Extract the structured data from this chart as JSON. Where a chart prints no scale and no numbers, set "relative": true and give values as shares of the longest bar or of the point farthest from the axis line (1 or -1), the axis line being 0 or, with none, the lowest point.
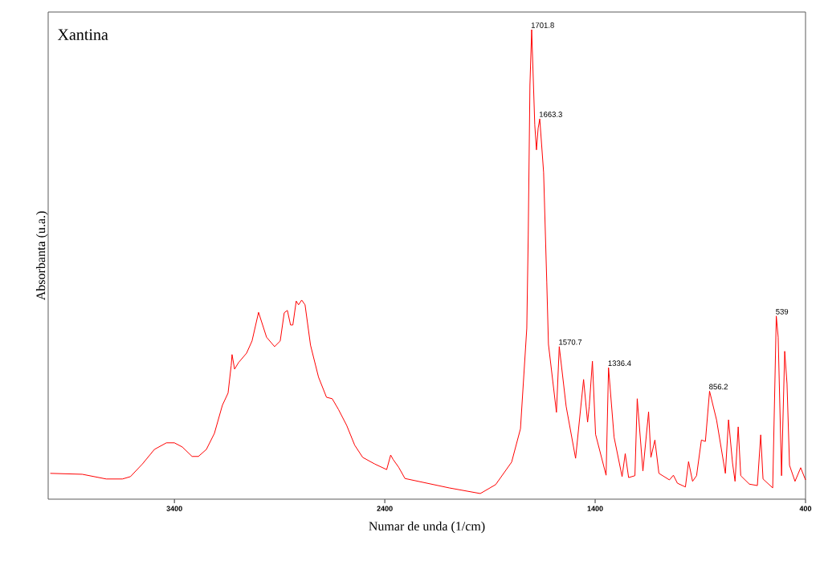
{
  "chart_data": {
    "type": "line",
    "title": "Xantina",
    "xlabel": "Numar de unda (1/cm)",
    "ylabel": "Absorbanta (u.a.)",
    "relative": true,
    "xlim": [
      4000,
      400
    ],
    "xticks": [
      3400,
      2400,
      1400,
      400
    ],
    "series": [
      {
        "color": "#ff0000",
        "x": [
          3990,
          3838,
          3724,
          3647,
          3609,
          3552,
          3495,
          3438,
          3400,
          3362,
          3316,
          3286,
          3248,
          3210,
          3172,
          3145,
          3130,
          3126,
          3114,
          3095,
          3057,
          3031,
          3000,
          2962,
          2924,
          2897,
          2878,
          2863,
          2848,
          2837,
          2821,
          2810,
          2795,
          2779,
          2753,
          2715,
          2677,
          2650,
          2620,
          2581,
          2543,
          2505,
          2448,
          2391,
          2372,
          2361,
          2334,
          2304,
          2094,
          1946,
          1873,
          1797,
          1755,
          1725,
          1718,
          1710,
          1701.8,
          1687,
          1679,
          1671,
          1663.3,
          1645,
          1630,
          1622,
          1584,
          1570.7,
          1538,
          1493,
          1455,
          1436,
          1428,
          1413,
          1398,
          1348,
          1336.4,
          1310,
          1272,
          1257,
          1241,
          1211,
          1200,
          1173,
          1146,
          1135,
          1116,
          1097,
          1047,
          1028,
          1009,
          971,
          956,
          937,
          918,
          895,
          876,
          856.2,
          823,
          781,
          766,
          747,
          735,
          720,
          708,
          667,
          629,
          613,
          602,
          556,
          539,
          530,
          514,
          499,
          488,
          476,
          450,
          423,
          400
        ],
        "values": [
          0.055,
          0.053,
          0.043,
          0.043,
          0.048,
          0.075,
          0.106,
          0.12,
          0.12,
          0.111,
          0.091,
          0.091,
          0.106,
          0.14,
          0.2,
          0.226,
          0.285,
          0.308,
          0.277,
          0.291,
          0.311,
          0.337,
          0.398,
          0.345,
          0.325,
          0.337,
          0.397,
          0.402,
          0.371,
          0.371,
          0.422,
          0.414,
          0.424,
          0.414,
          0.328,
          0.26,
          0.217,
          0.214,
          0.191,
          0.157,
          0.115,
          0.089,
          0.075,
          0.063,
          0.094,
          0.085,
          0.068,
          0.044,
          0.024,
          0.012,
          0.031,
          0.079,
          0.15,
          0.364,
          0.564,
          0.882,
          1,
          0.797,
          0.744,
          0.79,
          0.81,
          0.696,
          0.463,
          0.33,
          0.185,
          0.325,
          0.198,
          0.087,
          0.255,
          0.164,
          0.198,
          0.294,
          0.138,
          0.051,
          0.28,
          0.132,
          0.048,
          0.097,
          0.046,
          0.05,
          0.214,
          0.06,
          0.186,
          0.089,
          0.126,
          0.055,
          0.041,
          0.051,
          0.034,
          0.026,
          0.08,
          0.038,
          0.05,
          0.126,
          0.123,
          0.23,
          0.169,
          0.055,
          0.169,
          0.077,
          0.038,
          0.154,
          0.05,
          0.032,
          0.029,
          0.137,
          0.043,
          0.024,
          0.39,
          0.345,
          0.05,
          0.315,
          0.246,
          0.072,
          0.038,
          0.067,
          0.041
        ]
      }
    ],
    "annotations": [
      {
        "text": "1701.8",
        "x": 1701.8,
        "y": 1
      },
      {
        "text": "1663.3",
        "x": 1663.3,
        "y": 0.81
      },
      {
        "text": "1570.7",
        "x": 1570.7,
        "y": 0.325
      },
      {
        "text": "1336.4",
        "x": 1336.4,
        "y": 0.28
      },
      {
        "text": "856.2",
        "x": 856.2,
        "y": 0.23
      },
      {
        "text": "539",
        "x": 539,
        "y": 0.39
      }
    ]
  }
}
